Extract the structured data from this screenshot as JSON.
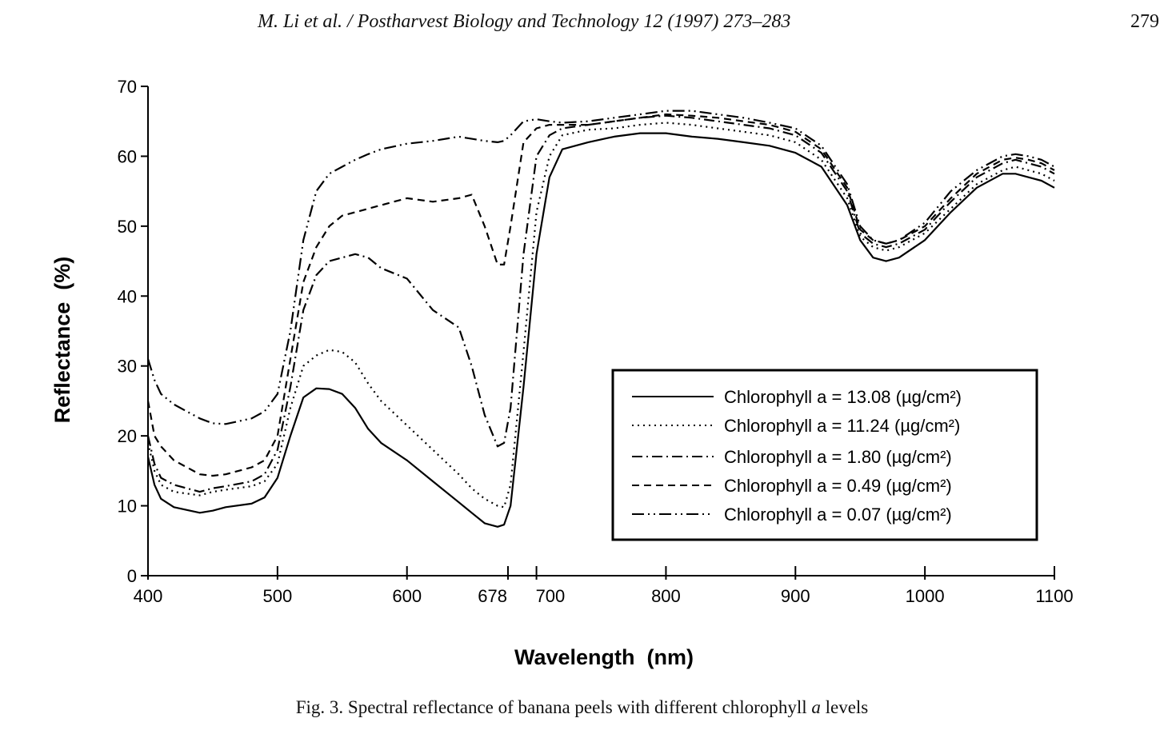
{
  "header": {
    "journal": "M. Li et al. / Postharvest Biology and Technology 12 (1997) 273–283",
    "page_number": "279"
  },
  "caption": {
    "prefix": "Fig. 3. Spectral reflectance of banana peels with different chlorophyll",
    "italic": "a",
    "suffix": "levels"
  },
  "chart_data": {
    "type": "line",
    "title": "",
    "xlabel": "Wavelength  (nm)",
    "ylabel": "Reflectance  (%)",
    "xlim": [
      400,
      1100
    ],
    "ylim": [
      0,
      70
    ],
    "x_ticks": [
      400,
      500,
      600,
      678,
      700,
      800,
      900,
      1000,
      1100
    ],
    "x_tick_labels": [
      "400",
      "500",
      "600",
      "678",
      "700",
      "800",
      "900",
      "1000",
      "1100"
    ],
    "y_ticks": [
      0,
      10,
      20,
      30,
      40,
      50,
      60,
      70
    ],
    "y_tick_labels": [
      "0",
      "10",
      "20",
      "30",
      "40",
      "50",
      "60",
      "70"
    ],
    "grid": false,
    "legend_position": "bottom-right",
    "series": [
      {
        "name": "Chlorophyll a = 13.08",
        "unit": "(µg/cm²)",
        "dash": "solid",
        "x": [
          400,
          405,
          410,
          420,
          440,
          450,
          460,
          480,
          490,
          500,
          510,
          520,
          530,
          540,
          550,
          560,
          570,
          580,
          600,
          620,
          640,
          650,
          660,
          670,
          675,
          680,
          690,
          700,
          710,
          720,
          740,
          760,
          780,
          800,
          820,
          840,
          860,
          880,
          900,
          920,
          940,
          950,
          960,
          970,
          980,
          1000,
          1020,
          1040,
          1060,
          1070,
          1080,
          1090,
          1100
        ],
        "y": [
          17,
          13,
          11,
          9.8,
          9,
          9.3,
          9.8,
          10.3,
          11.2,
          14,
          20,
          25.5,
          26.8,
          26.7,
          26,
          24,
          21,
          19,
          16.5,
          13.5,
          10.5,
          9,
          7.5,
          7,
          7.3,
          10,
          27,
          46,
          57,
          61,
          62,
          62.8,
          63.3,
          63.3,
          62.8,
          62.5,
          62,
          61.5,
          60.5,
          58.5,
          53,
          48,
          45.5,
          45,
          45.5,
          48,
          52,
          55.5,
          57.5,
          57.5,
          57,
          56.5,
          55.5
        ]
      },
      {
        "name": "Chlorophyll a = 11.24",
        "unit": "(µg/cm²)",
        "dash": "dotted",
        "x": [
          400,
          405,
          410,
          420,
          440,
          450,
          460,
          480,
          490,
          500,
          510,
          520,
          530,
          540,
          550,
          560,
          570,
          580,
          600,
          620,
          640,
          650,
          660,
          670,
          675,
          680,
          690,
          700,
          710,
          720,
          740,
          760,
          780,
          800,
          820,
          840,
          860,
          880,
          900,
          920,
          940,
          950,
          960,
          970,
          980,
          1000,
          1020,
          1040,
          1060,
          1070,
          1080,
          1090,
          1100
        ],
        "y": [
          19,
          15,
          13,
          12,
          11.5,
          12,
          12.3,
          12.8,
          13.5,
          16,
          24,
          30,
          31.5,
          32.3,
          32,
          30.5,
          27.5,
          25,
          21.5,
          18,
          14.5,
          12.5,
          11,
          10,
          9.8,
          13,
          32,
          52,
          60,
          63,
          63.8,
          64,
          64.5,
          64.8,
          64.5,
          64,
          63.5,
          63,
          62,
          59.5,
          54,
          48.5,
          47,
          46.5,
          47,
          49,
          52.5,
          56,
          58,
          58.5,
          58,
          57.5,
          56.5
        ]
      },
      {
        "name": "Chlorophyll a = 1.80",
        "unit": "(µg/cm²)",
        "dash": "dashdot",
        "x": [
          400,
          405,
          410,
          420,
          440,
          450,
          460,
          480,
          490,
          500,
          510,
          520,
          530,
          540,
          550,
          560,
          570,
          580,
          600,
          620,
          640,
          650,
          660,
          670,
          675,
          680,
          690,
          700,
          710,
          720,
          740,
          760,
          780,
          800,
          820,
          840,
          860,
          880,
          900,
          920,
          940,
          950,
          960,
          970,
          980,
          1000,
          1020,
          1040,
          1060,
          1070,
          1080,
          1090,
          1100
        ],
        "y": [
          20,
          16,
          14,
          13,
          12,
          12.5,
          12.8,
          13.5,
          14.5,
          18,
          27,
          38,
          43,
          45,
          45.5,
          46,
          45.5,
          44,
          42.5,
          38,
          35.5,
          30,
          23,
          18.5,
          19,
          24,
          46,
          60,
          63,
          64,
          64.5,
          65,
          65.5,
          65.8,
          65.5,
          65,
          64.5,
          64,
          63,
          60.5,
          55,
          49,
          47.5,
          47,
          47.5,
          49.5,
          53.5,
          57,
          59,
          59.5,
          59,
          58.5,
          57.5
        ]
      },
      {
        "name": "Chlorophyll a = 0.49",
        "unit": "(µg/cm²)",
        "dash": "dashed",
        "x": [
          400,
          405,
          410,
          420,
          440,
          450,
          460,
          480,
          490,
          500,
          510,
          520,
          530,
          540,
          550,
          560,
          570,
          580,
          600,
          620,
          640,
          650,
          660,
          670,
          675,
          680,
          690,
          700,
          710,
          720,
          740,
          760,
          780,
          800,
          820,
          840,
          860,
          880,
          900,
          920,
          940,
          950,
          960,
          970,
          980,
          1000,
          1020,
          1040,
          1060,
          1070,
          1080,
          1090,
          1100
        ],
        "y": [
          25,
          20,
          18.5,
          16.5,
          14.5,
          14.3,
          14.5,
          15.5,
          16.5,
          20,
          31,
          42,
          47,
          50,
          51.5,
          52,
          52.5,
          53,
          54,
          53.5,
          54,
          54.5,
          50,
          44.5,
          44.5,
          50,
          62,
          64,
          64.5,
          64.5,
          64.5,
          65,
          65.5,
          66,
          65.8,
          65.5,
          65,
          64.5,
          63.5,
          61,
          55.5,
          49.5,
          48,
          47.5,
          48,
          50,
          54,
          57.5,
          59.5,
          59.8,
          59.5,
          59,
          58
        ]
      },
      {
        "name": "Chlorophyll a = 0.07",
        "unit": "(µg/cm²)",
        "dash": "dashdotdot",
        "x": [
          400,
          405,
          410,
          420,
          440,
          450,
          460,
          480,
          490,
          500,
          510,
          520,
          530,
          540,
          550,
          560,
          570,
          580,
          600,
          620,
          640,
          650,
          660,
          670,
          675,
          680,
          690,
          700,
          710,
          720,
          740,
          760,
          780,
          800,
          820,
          840,
          860,
          880,
          900,
          920,
          940,
          950,
          960,
          970,
          980,
          1000,
          1020,
          1040,
          1060,
          1070,
          1080,
          1090,
          1100
        ],
        "y": [
          31,
          28,
          26,
          24.5,
          22.5,
          21.8,
          21.7,
          22.5,
          23.5,
          26,
          35,
          48,
          55,
          57.5,
          58.5,
          59.5,
          60.3,
          61,
          61.8,
          62.2,
          62.8,
          62.5,
          62.2,
          62,
          62.2,
          63,
          65,
          65.3,
          65,
          64.8,
          65,
          65.5,
          66,
          66.5,
          66.5,
          66,
          65.5,
          64.8,
          64,
          61.5,
          56,
          50,
          48,
          47.5,
          48,
          50.5,
          55,
          58,
          60,
          60.3,
          60,
          59.5,
          58.5
        ]
      }
    ]
  }
}
